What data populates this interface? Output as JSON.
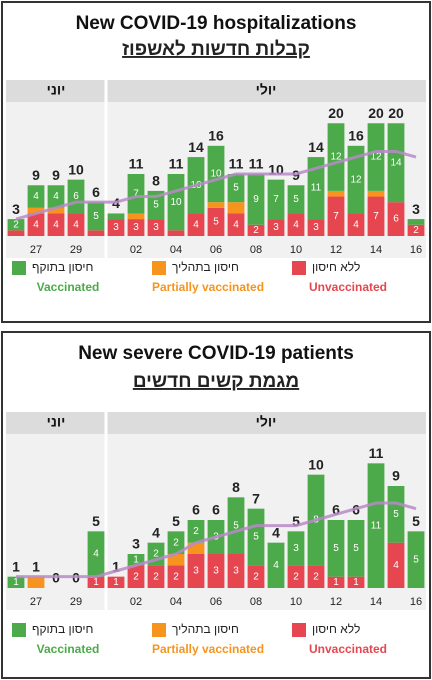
{
  "chart_data": [
    {
      "type": "bar",
      "stacked": true,
      "title": "New COVID-19 hospitalizations",
      "subtitle": "קבלות חדשות לאשפוז",
      "groups": [
        {
          "label": "יוני",
          "categories": [
            null,
            "27",
            null,
            "29",
            null
          ]
        },
        {
          "label": "יולי",
          "categories": [
            null,
            "02",
            null,
            "04",
            null,
            "06",
            null,
            "08",
            null,
            "10",
            null,
            "12",
            null,
            "14",
            null,
            "16"
          ]
        }
      ],
      "series": [
        {
          "name": "ללא חיסון",
          "name_en": "Unvaccinated",
          "color": "#e5464f",
          "values": [
            1,
            4,
            4,
            4,
            1,
            3,
            3,
            3,
            1,
            4,
            5,
            4,
            2,
            3,
            4,
            3,
            7,
            4,
            7,
            6,
            2
          ]
        },
        {
          "name": "חיסון בתהליך",
          "name_en": "Partially vaccinated",
          "color": "#f7941d",
          "values": [
            0,
            1,
            1,
            0,
            0,
            0,
            1,
            0,
            0,
            0,
            1,
            2,
            0,
            0,
            0,
            0,
            1,
            0,
            1,
            0,
            0
          ]
        },
        {
          "name": "חיסון בתוקף",
          "name_en": "Vaccinated",
          "color": "#4caa4a",
          "values": [
            2,
            4,
            4,
            6,
            5,
            1,
            7,
            5,
            10,
            10,
            10,
            5,
            9,
            7,
            5,
            11,
            12,
            12,
            12,
            14,
            1
          ]
        }
      ],
      "totals": [
        3,
        9,
        9,
        10,
        6,
        4,
        11,
        8,
        11,
        14,
        16,
        11,
        11,
        10,
        9,
        14,
        20,
        16,
        20,
        20,
        3
      ],
      "trend": {
        "color": "#b88ac9",
        "values": [
          3,
          4,
          5,
          6,
          6,
          6,
          7,
          7,
          8,
          9,
          10,
          11,
          11,
          11,
          11,
          12,
          13,
          14,
          15,
          15,
          14
        ]
      },
      "ylim": [
        0,
        22
      ]
    },
    {
      "type": "bar",
      "stacked": true,
      "title": "New severe COVID-19 patients",
      "subtitle": "מגמת קשים חדשים",
      "groups": [
        {
          "label": "יוני",
          "categories": [
            null,
            "27",
            null,
            "29",
            null
          ]
        },
        {
          "label": "יולי",
          "categories": [
            null,
            "02",
            null,
            "04",
            null,
            "06",
            null,
            "08",
            null,
            "10",
            null,
            "12",
            null,
            "14",
            null,
            "16"
          ]
        }
      ],
      "series": [
        {
          "name": "ללא חיסון",
          "name_en": "Unvaccinated",
          "color": "#e5464f",
          "values": [
            0,
            0,
            0,
            0,
            1,
            1,
            2,
            2,
            2,
            3,
            3,
            3,
            2,
            0,
            2,
            2,
            1,
            1,
            0,
            4,
            0
          ]
        },
        {
          "name": "חיסון בתהליך",
          "name_en": "Partially vaccinated",
          "color": "#f7941d",
          "values": [
            0,
            1,
            0,
            0,
            0,
            0,
            0,
            0,
            1,
            1,
            0,
            0,
            0,
            0,
            0,
            0,
            0,
            0,
            0,
            0,
            0
          ]
        },
        {
          "name": "חיסון בתוקף",
          "name_en": "Vaccinated",
          "color": "#4caa4a",
          "values": [
            1,
            0,
            0,
            0,
            4,
            0,
            1,
            2,
            2,
            2,
            3,
            5,
            5,
            4,
            3,
            8,
            5,
            5,
            11,
            5,
            5
          ]
        }
      ],
      "totals": [
        1,
        1,
        0,
        0,
        5,
        1,
        3,
        4,
        5,
        6,
        6,
        8,
        7,
        4,
        5,
        10,
        6,
        6,
        11,
        9,
        5
      ],
      "trend": {
        "color": "#b88ac9",
        "values": [
          1,
          1,
          1,
          1,
          1,
          1.5,
          2,
          2.5,
          3,
          4,
          4.5,
          5,
          5.5,
          5.5,
          5.5,
          6,
          6.5,
          7,
          7.5,
          7.5,
          7
        ]
      },
      "ylim": [
        0,
        12
      ]
    }
  ]
}
